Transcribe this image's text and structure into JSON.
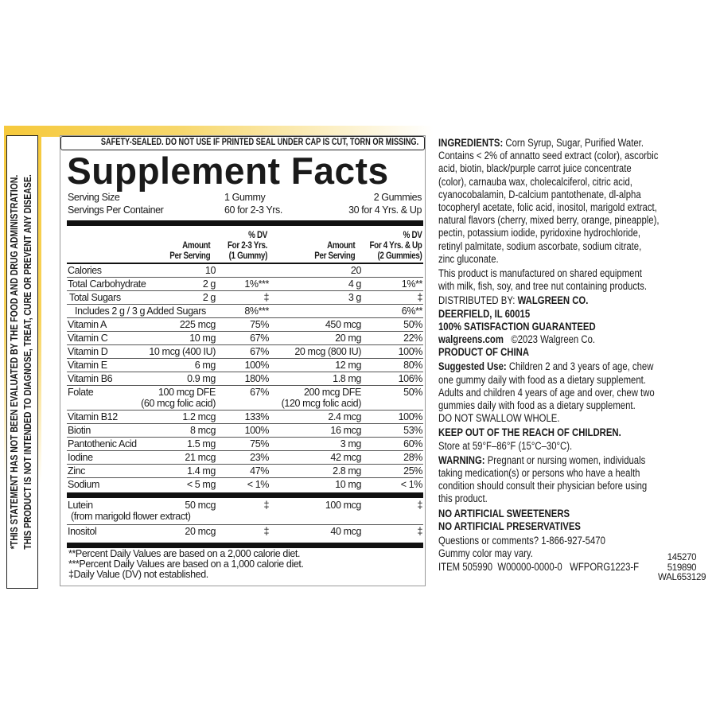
{
  "disclaimer": {
    "line1": "*THIS STATEMENT HAS NOT BEEN EVALUATED BY THE FOOD AND DRUG ADMINISTRATION.",
    "line2": "THIS PRODUCT IS NOT INTENDED TO DIAGNOSE, TREAT, CURE OR PREVENT ANY DISEASE."
  },
  "facts": {
    "seal": "SAFETY-SEALED. DO NOT USE IF PRINTED SEAL UNDER CAP IS CUT, TORN OR MISSING.",
    "title": "Supplement Facts",
    "serving_size_label": "Serving Size",
    "serving_size_1": "1 Gummy",
    "serving_size_2": "2 Gummies",
    "servings_label": "Servings Per Container",
    "servings_1": "60 for 2-3 Yrs.",
    "servings_2": "30 for 4 Yrs. & Up",
    "headers": {
      "amt1": [
        "Amount",
        "Per Serving"
      ],
      "dv1": [
        "% DV",
        "For 2-3 Yrs.",
        "(1 Gummy)"
      ],
      "amt2": [
        "Amount",
        "Per Serving"
      ],
      "dv2": [
        "% DV",
        "For 4 Yrs. & Up",
        "(2 Gummies)"
      ]
    },
    "rows": [
      {
        "name": "Calories",
        "amt1": "10",
        "dv1": "",
        "amt2": "20",
        "dv2": ""
      },
      {
        "name": "Total Carbohydrate",
        "amt1": "2 g",
        "dv1": "1%***",
        "amt2": "4 g",
        "dv2": "1%**"
      },
      {
        "name": "Total Sugars",
        "amt1": "2 g",
        "dv1": "‡",
        "amt2": "3 g",
        "dv2": "‡",
        "indent": 1
      },
      {
        "name": "Includes 2 g / 3 g Added Sugars",
        "amt1": "",
        "dv1": "8%***",
        "amt2": "",
        "dv2": "6%**",
        "indent": 2
      },
      {
        "name": "Vitamin A",
        "amt1": "225 mcg",
        "dv1": "75%",
        "amt2": "450 mcg",
        "dv2": "50%"
      },
      {
        "name": "Vitamin C",
        "amt1": "10 mg",
        "dv1": "67%",
        "amt2": "20 mg",
        "dv2": "22%"
      },
      {
        "name": "Vitamin D",
        "amt1": "10 mcg (400 IU)",
        "dv1": "67%",
        "amt2": "20 mcg (800 IU)",
        "dv2": "100%"
      },
      {
        "name": "Vitamin E",
        "amt1": "6 mg",
        "dv1": "100%",
        "amt2": "12 mg",
        "dv2": "80%"
      },
      {
        "name": "Vitamin B6",
        "amt1": "0.9 mg",
        "dv1": "180%",
        "amt2": "1.8 mg",
        "dv2": "106%"
      },
      {
        "name": "Folate",
        "amt1": "100 mcg DFE",
        "amt1b": "(60 mcg folic acid)",
        "dv1": "67%",
        "amt2": "200 mcg DFE",
        "amt2b": "(120 mcg folic acid)",
        "dv2": "50%"
      },
      {
        "name": "Vitamin B12",
        "amt1": "1.2 mcg",
        "dv1": "133%",
        "amt2": "2.4 mcg",
        "dv2": "100%"
      },
      {
        "name": "Biotin",
        "amt1": "8 mcg",
        "dv1": "100%",
        "amt2": "16 mcg",
        "dv2": "53%"
      },
      {
        "name": "Pantothenic Acid",
        "amt1": "1.5 mg",
        "dv1": "75%",
        "amt2": "3 mg",
        "dv2": "60%"
      },
      {
        "name": "Iodine",
        "amt1": "21 mcg",
        "dv1": "23%",
        "amt2": "42 mcg",
        "dv2": "28%"
      },
      {
        "name": "Zinc",
        "amt1": "1.4 mg",
        "dv1": "47%",
        "amt2": "2.8 mg",
        "dv2": "25%"
      },
      {
        "name": "Sodium",
        "amt1": "< 5 mg",
        "dv1": "< 1%",
        "amt2": "10 mg",
        "dv2": "< 1%"
      }
    ],
    "other_rows": [
      {
        "name": "Lutein",
        "nameb": "(from marigold flower extract)",
        "amt1": "50 mcg",
        "dv1": "‡",
        "amt2": "100 mcg",
        "dv2": "‡"
      },
      {
        "name": "Inositol",
        "amt1": "20 mcg",
        "dv1": "‡",
        "amt2": "40 mcg",
        "dv2": "‡"
      }
    ],
    "footnotes": [
      "**Percent Daily Values are based on a 2,000 calorie diet.",
      "***Percent Daily Values are based on a 1,000 calorie diet.",
      "‡Daily Value (DV) not established."
    ]
  },
  "info": {
    "lines": [
      {
        "b": "INGREDIENTS:",
        "t": " Corn Syrup, Sugar, Purified Water."
      },
      {
        "t": "Contains < 2% of annatto seed extract (color), ascorbic"
      },
      {
        "t": "acid, biotin, black/purple carrot juice concentrate"
      },
      {
        "t": "(color), carnauba wax, cholecalciferol, citric acid,"
      },
      {
        "t": "cyanocobalamin, D-calcium pantothenate, dl-alpha"
      },
      {
        "t": "tocopheryl acetate, folic acid, inositol, marigold extract,"
      },
      {
        "t": "natural flavors (cherry, mixed berry, orange, pineapple),"
      },
      {
        "t": "pectin, potassium iodide, pyridoxine hydrochloride,"
      },
      {
        "t": "retinyl palmitate, sodium ascorbate, sodium citrate,"
      },
      {
        "t": "zinc gluconate.",
        "gap": true
      },
      {
        "t": "This product is manufactured on shared equipment"
      },
      {
        "t": "with milk, fish, soy, and tree nut containing products.",
        "gap": true
      },
      {
        "t": "DISTRIBUTED BY: ",
        "b2": "WALGREEN CO."
      },
      {
        "b": "DEERFIELD, IL 60015"
      },
      {
        "b": "100% SATISFACTION GUARANTEED"
      },
      {
        "b": "walgreens.com",
        "t": "   ©2023 Walgreen Co."
      },
      {
        "b": "PRODUCT OF CHINA",
        "gap": true
      },
      {
        "b": "Suggested Use:",
        "t": " Children 2 and 3 years of age, chew"
      },
      {
        "t": "one gummy daily with food as a dietary supplement."
      },
      {
        "t": "Adults and children 4 years of age and over, chew two"
      },
      {
        "t": "gummies daily with food as a dietary supplement."
      },
      {
        "t": "DO NOT SWALLOW WHOLE.",
        "gap": true
      },
      {
        "b": "KEEP OUT OF THE REACH OF CHILDREN."
      },
      {
        "t": "Store at 59°F–86°F (15°C–30°C).",
        "gap": true
      },
      {
        "b": "WARNING:",
        "t": " Pregnant or nursing women, individuals"
      },
      {
        "t": "taking medication(s) or persons who have a health"
      },
      {
        "t": "condition should consult their physician before using"
      },
      {
        "t": "this product.",
        "gap": true
      },
      {
        "b": "NO ARTIFICIAL SWEETENERS"
      },
      {
        "b": "NO ARTIFICIAL PRESERVATIVES",
        "gap": true
      },
      {
        "t": "Questions or comments? 1-866-927-5470"
      },
      {
        "t": "Gummy color may vary."
      },
      {
        "t": "ITEM 505990  W00000-0000-0   WFPORG1223-F"
      }
    ],
    "codes": [
      "145270",
      "519890",
      "WAL653129"
    ]
  },
  "colors": {
    "accent_yellow": "#f6c93c",
    "text": "#1a1a1a"
  }
}
